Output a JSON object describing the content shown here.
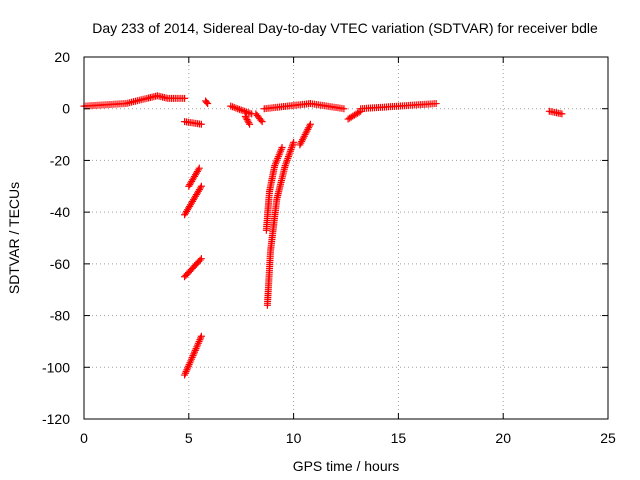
{
  "chart_data": {
    "type": "scatter",
    "title": "Day 233 of 2014, Sidereal Day-to-day VTEC variation (SDTVAR) for receiver bdle",
    "xlabel": "GPS time / hours",
    "ylabel": "SDTVAR / TECUs",
    "xlim": [
      0,
      25
    ],
    "ylim": [
      -120,
      20
    ],
    "x_ticks": [
      "0",
      "5",
      "10",
      "15",
      "20",
      "25"
    ],
    "y_ticks": [
      "20",
      "0",
      "-20",
      "-40",
      "-60",
      "-80",
      "-100",
      "-120"
    ],
    "x_tick_values": [
      0,
      5,
      10,
      15,
      20,
      25
    ],
    "y_tick_values": [
      20,
      0,
      -20,
      -40,
      -60,
      -80,
      -100,
      -120
    ],
    "grid": true,
    "marker": "+",
    "color": "#ff0000",
    "series": [
      {
        "name": "SDTVAR",
        "segments": [
          {
            "x": [
              0.0,
              2.0,
              3.0,
              3.5,
              4.0,
              4.8
            ],
            "y": [
              1,
              2,
              4,
              5,
              4,
              4
            ]
          },
          {
            "x": [
              4.8,
              5.6
            ],
            "y": [
              -5,
              -6
            ]
          },
          {
            "x": [
              5.8,
              5.9
            ],
            "y": [
              3,
              2
            ]
          },
          {
            "x": [
              4.8,
              5.6
            ],
            "y": [
              -41,
              -30
            ]
          },
          {
            "x": [
              5.0,
              5.5
            ],
            "y": [
              -30,
              -23
            ]
          },
          {
            "x": [
              4.8,
              5.6
            ],
            "y": [
              -65,
              -58
            ]
          },
          {
            "x": [
              4.8,
              5.6
            ],
            "y": [
              -103,
              -88
            ]
          },
          {
            "x": [
              7.0,
              8.0
            ],
            "y": [
              1,
              -2
            ]
          },
          {
            "x": [
              7.7,
              7.9
            ],
            "y": [
              -3,
              -6
            ]
          },
          {
            "x": [
              8.2,
              8.5
            ],
            "y": [
              -2,
              -5
            ]
          },
          {
            "x": [
              8.6,
              10.8
            ],
            "y": [
              0,
              2
            ]
          },
          {
            "x": [
              10.8,
              12.4
            ],
            "y": [
              2,
              0
            ]
          },
          {
            "x": [
              12.6,
              13.2
            ],
            "y": [
              -4,
              -1
            ]
          },
          {
            "x": [
              13.2,
              16.8
            ],
            "y": [
              0,
              2
            ]
          },
          {
            "x": [
              8.75,
              8.9,
              9.2,
              9.6,
              10.0
            ],
            "y": [
              -76,
              -55,
              -35,
              -22,
              -13
            ]
          },
          {
            "x": [
              8.7,
              8.85,
              9.1,
              9.45
            ],
            "y": [
              -47,
              -32,
              -22,
              -15
            ]
          },
          {
            "x": [
              10.3,
              10.8
            ],
            "y": [
              -14,
              -6
            ]
          },
          {
            "x": [
              22.2,
              22.8
            ],
            "y": [
              -1,
              -2
            ]
          }
        ]
      }
    ]
  }
}
